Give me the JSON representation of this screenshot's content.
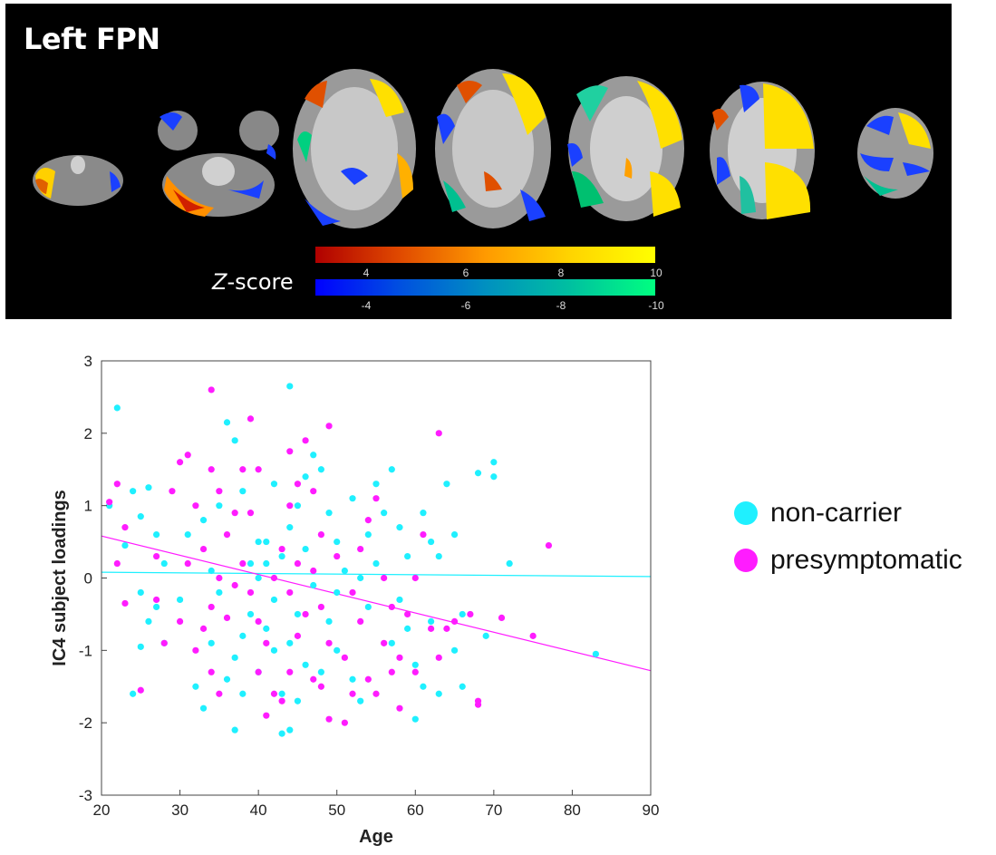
{
  "panel": {
    "title": "Left FPN",
    "colorbar_label_prefix": "Z",
    "colorbar_label_suffix": "-score",
    "positive_ticks": [
      "4",
      "6",
      "8",
      "10"
    ],
    "negative_ticks": [
      "-4",
      "-6",
      "-8",
      "-10"
    ]
  },
  "legend": {
    "items": [
      {
        "label": "non-carrier",
        "color": "#1ff0ff"
      },
      {
        "label": "presymptomatic",
        "color": "#ff1cff"
      }
    ]
  },
  "chart_data": {
    "type": "scatter",
    "xlabel": "Age",
    "ylabel": "IC4 subject loadings",
    "xlim": [
      20,
      90
    ],
    "ylim": [
      -3,
      3
    ],
    "xticks": [
      20,
      30,
      40,
      50,
      60,
      70,
      80,
      90
    ],
    "yticks": [
      -3,
      -2,
      -1,
      0,
      1,
      2,
      3
    ],
    "grid": false,
    "legend_position": "right",
    "series": [
      {
        "name": "non-carrier",
        "color": "#1ff0ff",
        "fit_line": {
          "x": [
            20,
            90
          ],
          "y": [
            0.08,
            0.02
          ]
        },
        "points": [
          [
            22,
            2.35
          ],
          [
            21,
            1.0
          ],
          [
            24,
            1.2
          ],
          [
            26,
            1.25
          ],
          [
            25,
            0.85
          ],
          [
            27,
            0.6
          ],
          [
            23,
            0.45
          ],
          [
            28,
            0.2
          ],
          [
            25,
            -0.2
          ],
          [
            27,
            -0.4
          ],
          [
            26,
            -0.6
          ],
          [
            28,
            -0.9
          ],
          [
            25,
            -0.95
          ],
          [
            24,
            -1.6
          ],
          [
            32,
            -1.5
          ],
          [
            33,
            -1.8
          ],
          [
            30,
            -0.3
          ],
          [
            31,
            0.6
          ],
          [
            33,
            0.8
          ],
          [
            35,
            1.0
          ],
          [
            36,
            2.15
          ],
          [
            37,
            1.9
          ],
          [
            38,
            1.2
          ],
          [
            40,
            0.5
          ],
          [
            41,
            0.2
          ],
          [
            40,
            0.0
          ],
          [
            42,
            -0.3
          ],
          [
            39,
            -0.5
          ],
          [
            38,
            -0.8
          ],
          [
            37,
            -1.1
          ],
          [
            36,
            -1.4
          ],
          [
            37,
            -2.1
          ],
          [
            40,
            -1.3
          ],
          [
            42,
            -1.0
          ],
          [
            43,
            -1.6
          ],
          [
            44,
            -2.1
          ],
          [
            43,
            -2.15
          ],
          [
            45,
            -1.7
          ],
          [
            46,
            -1.2
          ],
          [
            44,
            -0.9
          ],
          [
            45,
            -0.5
          ],
          [
            43,
            0.3
          ],
          [
            44,
            0.7
          ],
          [
            45,
            1.0
          ],
          [
            46,
            1.4
          ],
          [
            47,
            1.7
          ],
          [
            44,
            2.65
          ],
          [
            48,
            1.5
          ],
          [
            49,
            0.9
          ],
          [
            50,
            0.5
          ],
          [
            51,
            0.1
          ],
          [
            50,
            -0.2
          ],
          [
            49,
            -0.6
          ],
          [
            50,
            -1.0
          ],
          [
            52,
            -1.4
          ],
          [
            53,
            -1.7
          ],
          [
            54,
            -0.4
          ],
          [
            55,
            0.2
          ],
          [
            54,
            0.6
          ],
          [
            56,
            0.9
          ],
          [
            55,
            1.3
          ],
          [
            57,
            1.5
          ],
          [
            58,
            0.7
          ],
          [
            59,
            0.3
          ],
          [
            58,
            -0.3
          ],
          [
            59,
            -0.7
          ],
          [
            60,
            -1.2
          ],
          [
            61,
            -1.5
          ],
          [
            60,
            -1.95
          ],
          [
            62,
            -0.6
          ],
          [
            61,
            0.9
          ],
          [
            62,
            0.5
          ],
          [
            63,
            0.3
          ],
          [
            64,
            1.3
          ],
          [
            65,
            0.6
          ],
          [
            66,
            -0.5
          ],
          [
            65,
            -1.0
          ],
          [
            66,
            -1.5
          ],
          [
            63,
            -1.6
          ],
          [
            68,
            1.45
          ],
          [
            69,
            -0.8
          ],
          [
            70,
            1.6
          ],
          [
            70,
            1.4
          ],
          [
            72,
            0.2
          ],
          [
            83,
            -1.05
          ],
          [
            34,
            0.1
          ],
          [
            35,
            -0.2
          ],
          [
            41,
            0.5
          ],
          [
            39,
            0.2
          ],
          [
            47,
            -0.1
          ],
          [
            53,
            0.0
          ],
          [
            57,
            -0.9
          ],
          [
            48,
            -1.3
          ],
          [
            41,
            -0.7
          ],
          [
            46,
            0.4
          ],
          [
            52,
            1.1
          ],
          [
            42,
            1.3
          ],
          [
            38,
            -1.6
          ],
          [
            34,
            -0.9
          ]
        ]
      },
      {
        "name": "presymptomatic",
        "color": "#ff1cff",
        "fit_line": {
          "x": [
            20,
            90
          ],
          "y": [
            0.58,
            -1.28
          ]
        },
        "points": [
          [
            21,
            1.05
          ],
          [
            22,
            1.3
          ],
          [
            23,
            0.7
          ],
          [
            22,
            0.2
          ],
          [
            23,
            -0.35
          ],
          [
            25,
            -1.55
          ],
          [
            27,
            -0.3
          ],
          [
            28,
            -0.9
          ],
          [
            27,
            0.3
          ],
          [
            29,
            1.2
          ],
          [
            30,
            1.6
          ],
          [
            31,
            1.7
          ],
          [
            32,
            1.0
          ],
          [
            33,
            0.4
          ],
          [
            34,
            2.6
          ],
          [
            34,
            1.5
          ],
          [
            35,
            1.2
          ],
          [
            36,
            0.6
          ],
          [
            35,
            0.0
          ],
          [
            34,
            -0.4
          ],
          [
            33,
            -0.7
          ],
          [
            32,
            -1.0
          ],
          [
            34,
            -1.3
          ],
          [
            35,
            -1.6
          ],
          [
            39,
            2.2
          ],
          [
            38,
            1.5
          ],
          [
            37,
            0.9
          ],
          [
            38,
            0.2
          ],
          [
            39,
            -0.2
          ],
          [
            40,
            -0.6
          ],
          [
            41,
            -0.9
          ],
          [
            40,
            -1.3
          ],
          [
            42,
            -1.6
          ],
          [
            41,
            -1.9
          ],
          [
            43,
            -1.7
          ],
          [
            44,
            -1.3
          ],
          [
            45,
            -0.8
          ],
          [
            44,
            -0.2
          ],
          [
            43,
            0.4
          ],
          [
            44,
            1.0
          ],
          [
            45,
            1.3
          ],
          [
            46,
            1.9
          ],
          [
            44,
            1.75
          ],
          [
            47,
            1.2
          ],
          [
            48,
            0.6
          ],
          [
            47,
            0.1
          ],
          [
            48,
            -0.4
          ],
          [
            49,
            -0.9
          ],
          [
            48,
            -1.5
          ],
          [
            49,
            -1.95
          ],
          [
            51,
            -2.0
          ],
          [
            52,
            -1.6
          ],
          [
            51,
            -1.1
          ],
          [
            53,
            -0.6
          ],
          [
            52,
            -0.2
          ],
          [
            53,
            0.4
          ],
          [
            54,
            0.8
          ],
          [
            55,
            1.1
          ],
          [
            49,
            2.1
          ],
          [
            56,
            0.0
          ],
          [
            57,
            -0.4
          ],
          [
            56,
            -0.9
          ],
          [
            57,
            -1.3
          ],
          [
            58,
            -1.8
          ],
          [
            59,
            -0.5
          ],
          [
            60,
            0.0
          ],
          [
            61,
            0.6
          ],
          [
            62,
            -0.7
          ],
          [
            63,
            -1.1
          ],
          [
            64,
            -0.7
          ],
          [
            63,
            2.0
          ],
          [
            65,
            -0.6
          ],
          [
            67,
            -0.5
          ],
          [
            68,
            -1.75
          ],
          [
            68,
            -1.7
          ],
          [
            71,
            -0.55
          ],
          [
            75,
            -0.8
          ],
          [
            77,
            0.45
          ],
          [
            36,
            -0.55
          ],
          [
            39,
            0.9
          ],
          [
            42,
            0.0
          ],
          [
            46,
            -0.5
          ],
          [
            50,
            0.3
          ],
          [
            54,
            -1.4
          ],
          [
            58,
            -1.1
          ],
          [
            30,
            -0.6
          ],
          [
            31,
            0.2
          ],
          [
            37,
            -0.1
          ],
          [
            45,
            0.2
          ],
          [
            55,
            -1.6
          ],
          [
            60,
            -1.3
          ],
          [
            40,
            1.5
          ],
          [
            47,
            -1.4
          ]
        ]
      }
    ]
  }
}
